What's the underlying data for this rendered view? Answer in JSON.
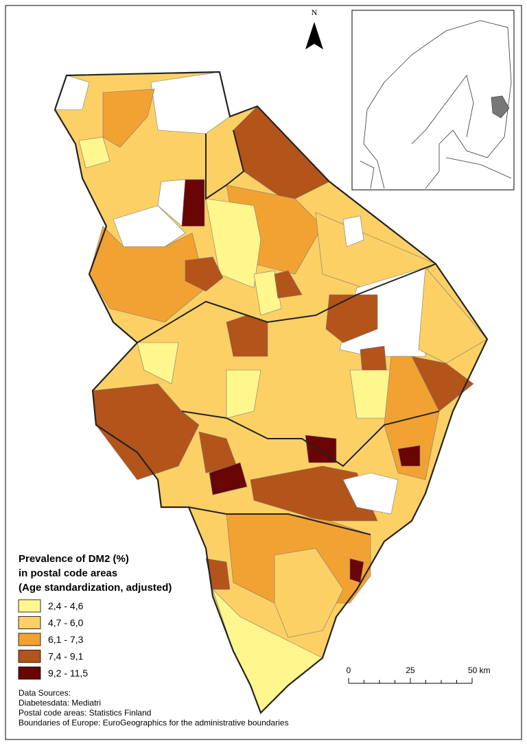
{
  "north_arrow": {
    "label": "N"
  },
  "legend": {
    "title": [
      "Prevalence of DM2 (%)",
      "in postal code areas",
      "(Age standardization, adjusted)"
    ],
    "classes": [
      {
        "label": "2,4 - 4,6",
        "color": "#fff78e"
      },
      {
        "label": "4,7 - 6,0",
        "color": "#fcd064"
      },
      {
        "label": "6,1 - 7,3",
        "color": "#f2a233"
      },
      {
        "label": "7,4 - 9,1",
        "color": "#b3541b"
      },
      {
        "label": "9,2 - 11,5",
        "color": "#6a0505"
      }
    ]
  },
  "scale_bar": {
    "labels": [
      "0",
      "25",
      "50 km"
    ]
  },
  "sources": [
    "Data Sources:",
    "Diabetesdata: Mediatri",
    "Postal code areas: Statistics Finland",
    "Boundaries of Europe: EuroGeographics for the administrative boundaries"
  ]
}
